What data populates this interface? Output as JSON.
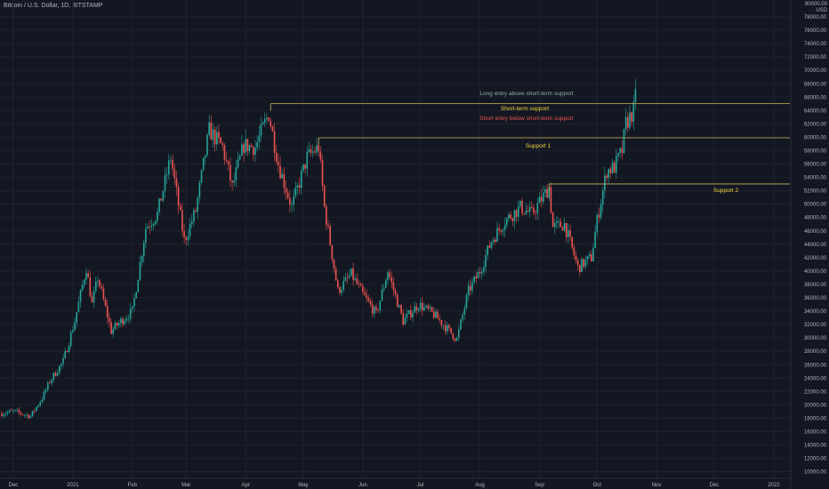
{
  "header": {
    "symbol_title": "Bitcoin / U.S. Dollar, 1D, BITSTAMP"
  },
  "colors": {
    "background": "#131722",
    "grid": "#1e222d",
    "up_candle": "#26a69a",
    "down_candle": "#ef5350",
    "level_line": "#c9b458",
    "support_label": "#f5d742",
    "long_entry_label": "#8bb39f",
    "short_entry_label": "#ef5350",
    "axis_text": "#b2b5be"
  },
  "chart_data": {
    "type": "candlestick",
    "title": "Bitcoin / U.S. Dollar, 1D, BITSTAMP",
    "y_unit": "USD",
    "y_axis_top_label": "80000.00",
    "ylim": [
      9000,
      80500
    ],
    "y_scale": "linear",
    "y_ticks": [
      10000,
      12000,
      14000,
      16000,
      18000,
      20000,
      22000,
      24000,
      26000,
      28000,
      30000,
      32000,
      34000,
      36000,
      38000,
      40000,
      42000,
      44000,
      46000,
      48000,
      50000,
      52000,
      54000,
      56000,
      58000,
      60000,
      62000,
      64000,
      66000,
      68000,
      70000,
      72000,
      74000,
      76000,
      78000
    ],
    "y_tick_labels": [
      "10000.00",
      "12000.00",
      "14000.00",
      "16000.00",
      "18000.00",
      "20000.00",
      "22000.00",
      "24000.00",
      "26000.00",
      "28000.00",
      "30000.00",
      "32000.00",
      "34000.00",
      "36000.00",
      "38000.00",
      "40000.00",
      "42000.00",
      "44000.00",
      "46000.00",
      "48000.00",
      "50000.00",
      "52000.00",
      "54000.00",
      "56000.00",
      "58000.00",
      "60000.00",
      "62000.00",
      "64000.00",
      "66000.00",
      "68000.00",
      "70000.00",
      "72000.00",
      "74000.00",
      "76000.00",
      "78000.00"
    ],
    "x_tick_labels": [
      "Dec",
      "2021",
      "Feb",
      "Mar",
      "Apr",
      "May",
      "Jun",
      "Jul",
      "Aug",
      "Sep",
      "Oct",
      "Nov",
      "Dec",
      "2022"
    ],
    "x_tick_dates": [
      "2020-12-01",
      "2021-01-01",
      "2021-02-01",
      "2021-03-01",
      "2021-04-01",
      "2021-05-01",
      "2021-06-01",
      "2021-07-01",
      "2021-08-01",
      "2021-09-01",
      "2021-10-01",
      "2021-11-01",
      "2021-12-01",
      "2022-01-01"
    ],
    "grid": true,
    "price_path": [
      [
        "2020-11-25",
        18700
      ],
      [
        "2020-12-01",
        19000
      ],
      [
        "2020-12-10",
        18300
      ],
      [
        "2020-12-16",
        21000
      ],
      [
        "2020-12-20",
        23500
      ],
      [
        "2020-12-27",
        26500
      ],
      [
        "2021-01-02",
        32500
      ],
      [
        "2021-01-08",
        40500
      ],
      [
        "2021-01-11",
        35000
      ],
      [
        "2021-01-14",
        39000
      ],
      [
        "2021-01-21",
        31000
      ],
      [
        "2021-01-26",
        32500
      ],
      [
        "2021-02-01",
        34000
      ],
      [
        "2021-02-08",
        46500
      ],
      [
        "2021-02-14",
        48500
      ],
      [
        "2021-02-21",
        57000
      ],
      [
        "2021-02-28",
        44500
      ],
      [
        "2021-03-06",
        49000
      ],
      [
        "2021-03-13",
        61000
      ],
      [
        "2021-03-20",
        58500
      ],
      [
        "2021-03-25",
        52500
      ],
      [
        "2021-03-31",
        58800
      ],
      [
        "2021-04-06",
        58500
      ],
      [
        "2021-04-13",
        63500
      ],
      [
        "2021-04-18",
        56000
      ],
      [
        "2021-04-25",
        49500
      ],
      [
        "2021-05-03",
        57000
      ],
      [
        "2021-05-09",
        58500
      ],
      [
        "2021-05-12",
        49500
      ],
      [
        "2021-05-19",
        37000
      ],
      [
        "2021-05-26",
        39500
      ],
      [
        "2021-06-01",
        36500
      ],
      [
        "2021-06-08",
        33500
      ],
      [
        "2021-06-14",
        40000
      ],
      [
        "2021-06-22",
        32500
      ],
      [
        "2021-06-30",
        35000
      ],
      [
        "2021-07-08",
        33500
      ],
      [
        "2021-07-20",
        29800
      ],
      [
        "2021-07-26",
        37000
      ],
      [
        "2021-08-01",
        40000
      ],
      [
        "2021-08-07",
        44500
      ],
      [
        "2021-08-14",
        47500
      ],
      [
        "2021-08-22",
        49500
      ],
      [
        "2021-08-28",
        48500
      ],
      [
        "2021-09-06",
        52500
      ],
      [
        "2021-09-08",
        46500
      ],
      [
        "2021-09-14",
        47000
      ],
      [
        "2021-09-21",
        40500
      ],
      [
        "2021-09-28",
        42000
      ],
      [
        "2021-10-01",
        47500
      ],
      [
        "2021-10-06",
        55000
      ],
      [
        "2021-10-10",
        55500
      ],
      [
        "2021-10-14",
        58000
      ],
      [
        "2021-10-16",
        62000
      ],
      [
        "2021-10-20",
        64000
      ],
      [
        "2021-10-21",
        66000
      ]
    ],
    "levels": [
      {
        "name": "Short-term support",
        "value": 65000,
        "start": "2021-04-14"
      },
      {
        "name": "Support 1",
        "value": 59900,
        "start": "2021-05-09"
      },
      {
        "name": "Support 2",
        "value": 53000,
        "start": "2021-09-06"
      }
    ]
  },
  "annotations": {
    "long_entry": "Long entry above short-term support",
    "short_term_support": "Short-term support",
    "short_entry": "Short entry below short-term support",
    "support_1": "Support 1",
    "support_2": "Support 2"
  },
  "axis": {
    "unit_top": "80000.00",
    "unit": "USD"
  }
}
